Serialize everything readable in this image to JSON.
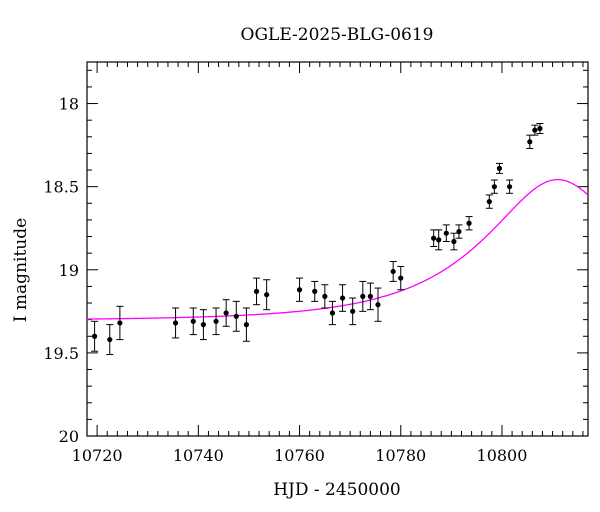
{
  "chart_data": {
    "type": "scatter",
    "title": "OGLE-2025-BLG-0619",
    "xlabel": "HJD - 2450000",
    "ylabel": "I magnitude",
    "xlim": [
      10718,
      10817
    ],
    "ylim": [
      20.0,
      17.75
    ],
    "y_inverted": true,
    "grid": false,
    "x_ticks": [
      10720,
      10740,
      10760,
      10780,
      10800
    ],
    "x_tick_labels": [
      "10720",
      "10740",
      "10760",
      "10780",
      "10800"
    ],
    "y_ticks": [
      18,
      18.5,
      19,
      19.5,
      20
    ],
    "y_tick_labels": [
      "18",
      "18.5",
      "19",
      "19.5",
      "20"
    ],
    "colors": {
      "points": "#000000",
      "errorbars": "#000000",
      "model": "#ff00ff",
      "frame": "#000000"
    },
    "series": [
      {
        "kind": "points_with_errors",
        "points": [
          {
            "x": 10719.5,
            "y": 19.4,
            "err": 0.09
          },
          {
            "x": 10722.5,
            "y": 19.42,
            "err": 0.09
          },
          {
            "x": 10724.5,
            "y": 19.32,
            "err": 0.1
          },
          {
            "x": 10735.5,
            "y": 19.32,
            "err": 0.09
          },
          {
            "x": 10739.0,
            "y": 19.31,
            "err": 0.08
          },
          {
            "x": 10741.0,
            "y": 19.33,
            "err": 0.09
          },
          {
            "x": 10743.5,
            "y": 19.31,
            "err": 0.08
          },
          {
            "x": 10745.5,
            "y": 19.26,
            "err": 0.08
          },
          {
            "x": 10747.5,
            "y": 19.28,
            "err": 0.09
          },
          {
            "x": 10749.5,
            "y": 19.33,
            "err": 0.1
          },
          {
            "x": 10751.5,
            "y": 19.13,
            "err": 0.08
          },
          {
            "x": 10753.5,
            "y": 19.15,
            "err": 0.09
          },
          {
            "x": 10760.0,
            "y": 19.12,
            "err": 0.07
          },
          {
            "x": 10763.0,
            "y": 19.13,
            "err": 0.06
          },
          {
            "x": 10765.0,
            "y": 19.16,
            "err": 0.07
          },
          {
            "x": 10766.5,
            "y": 19.26,
            "err": 0.07
          },
          {
            "x": 10768.5,
            "y": 19.17,
            "err": 0.08
          },
          {
            "x": 10770.5,
            "y": 19.25,
            "err": 0.08
          },
          {
            "x": 10772.5,
            "y": 19.16,
            "err": 0.09
          },
          {
            "x": 10774.0,
            "y": 19.16,
            "err": 0.08
          },
          {
            "x": 10775.5,
            "y": 19.21,
            "err": 0.1
          },
          {
            "x": 10778.5,
            "y": 19.01,
            "err": 0.06
          },
          {
            "x": 10780.0,
            "y": 19.05,
            "err": 0.07
          },
          {
            "x": 10786.5,
            "y": 18.81,
            "err": 0.05
          },
          {
            "x": 10787.5,
            "y": 18.82,
            "err": 0.06
          },
          {
            "x": 10789.0,
            "y": 18.78,
            "err": 0.05
          },
          {
            "x": 10790.5,
            "y": 18.83,
            "err": 0.05
          },
          {
            "x": 10791.5,
            "y": 18.77,
            "err": 0.04
          },
          {
            "x": 10793.5,
            "y": 18.72,
            "err": 0.04
          },
          {
            "x": 10797.5,
            "y": 18.59,
            "err": 0.04
          },
          {
            "x": 10798.5,
            "y": 18.5,
            "err": 0.04
          },
          {
            "x": 10799.5,
            "y": 18.39,
            "err": 0.03
          },
          {
            "x": 10801.5,
            "y": 18.5,
            "err": 0.04
          },
          {
            "x": 10805.5,
            "y": 18.23,
            "err": 0.04
          },
          {
            "x": 10806.5,
            "y": 18.16,
            "err": 0.03
          },
          {
            "x": 10807.5,
            "y": 18.15,
            "err": 0.03
          }
        ]
      },
      {
        "kind": "model_curve",
        "baseline_mag": 19.305,
        "t0": 10811,
        "tE": 25,
        "u0": 0.5
      }
    ]
  }
}
